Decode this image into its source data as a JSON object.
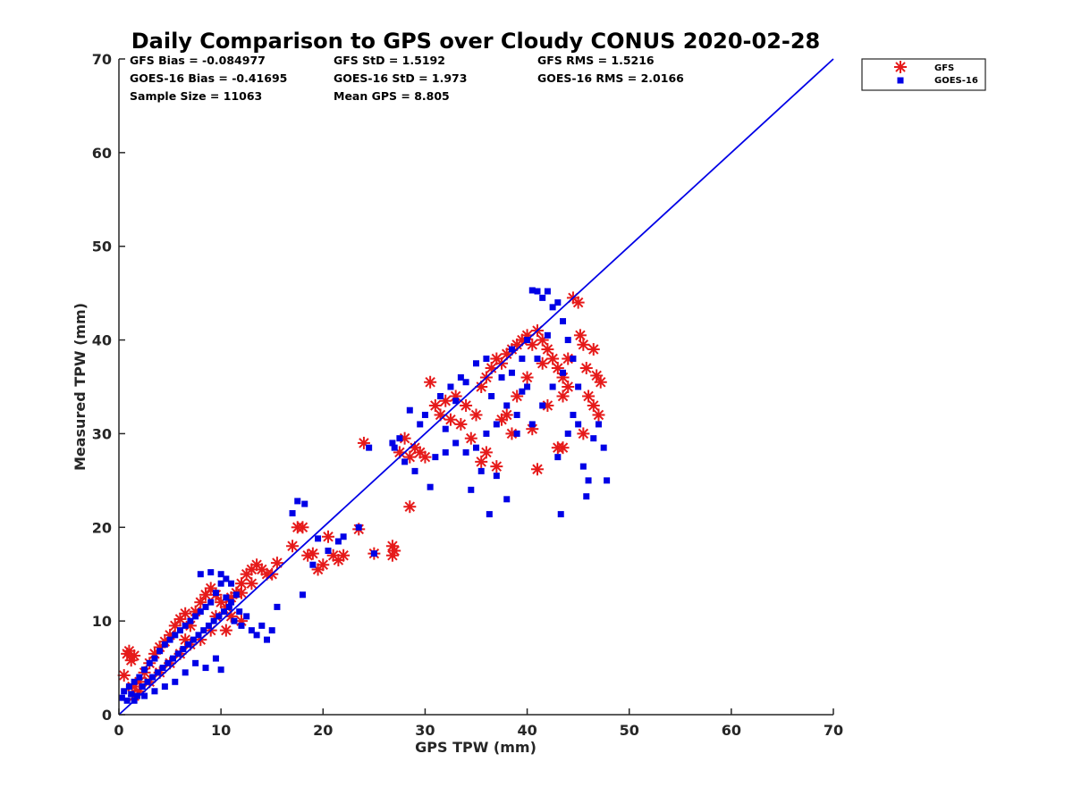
{
  "chart_data": {
    "type": "scatter",
    "title": "Daily Comparison to GPS over Cloudy CONUS 2020-02-28",
    "xlabel": "GPS TPW (mm)",
    "ylabel": "Measured TPW (mm)",
    "xlim": [
      0,
      70
    ],
    "ylim": [
      0,
      70
    ],
    "xticks": [
      0,
      10,
      20,
      30,
      40,
      50,
      60,
      70
    ],
    "yticks": [
      0,
      10,
      20,
      30,
      40,
      50,
      60,
      70
    ],
    "grid": false,
    "legend_position": "outside-top-right",
    "stats": {
      "gfs_bias": "GFS Bias = -0.084977",
      "gfs_std": "GFS StD = 1.5192",
      "gfs_rms": "GFS RMS = 1.5216",
      "goes_bias": "GOES-16 Bias = -0.41695",
      "goes_std": "GOES-16 StD = 1.973",
      "goes_rms": "GOES-16 RMS = 2.0166",
      "sample_size": "Sample Size = 11063",
      "mean_gps": "Mean GPS = 8.805"
    },
    "reference_line": {
      "x": [
        0,
        70
      ],
      "y": [
        0,
        70
      ],
      "color": "#0000e6"
    },
    "series": [
      {
        "name": "GFS",
        "marker": "asterisk",
        "color": "#e61a1a",
        "points": [
          [
            0.5,
            4.2
          ],
          [
            0.8,
            6.5
          ],
          [
            1.0,
            6.8
          ],
          [
            1.2,
            5.8
          ],
          [
            1.5,
            6.3
          ],
          [
            1.3,
            3.0
          ],
          [
            2.0,
            3.5
          ],
          [
            2.5,
            4.5
          ],
          [
            3.0,
            5.5
          ],
          [
            3.5,
            6.5
          ],
          [
            4.0,
            7.2
          ],
          [
            4.5,
            7.8
          ],
          [
            5.0,
            8.5
          ],
          [
            5.5,
            9.5
          ],
          [
            6.0,
            10.2
          ],
          [
            6.5,
            10.8
          ],
          [
            7.0,
            9.5
          ],
          [
            7.5,
            11.0
          ],
          [
            8.0,
            12.0
          ],
          [
            8.5,
            12.8
          ],
          [
            9.0,
            13.5
          ],
          [
            9.5,
            12.8
          ],
          [
            10.0,
            12.0
          ],
          [
            10.5,
            11.5
          ],
          [
            11.0,
            12.5
          ],
          [
            11.5,
            13.0
          ],
          [
            12.0,
            14.0
          ],
          [
            12.5,
            15.0
          ],
          [
            13.0,
            15.5
          ],
          [
            13.5,
            16.0
          ],
          [
            14.0,
            15.5
          ],
          [
            14.5,
            15.0
          ],
          [
            13.0,
            14.0
          ],
          [
            12.0,
            13.0
          ],
          [
            15.0,
            15.0
          ],
          [
            15.5,
            16.2
          ],
          [
            11.0,
            10.5
          ],
          [
            9.0,
            9.0
          ],
          [
            8.0,
            8.0
          ],
          [
            7.0,
            7.5
          ],
          [
            6.0,
            6.5
          ],
          [
            5.0,
            5.5
          ],
          [
            4.0,
            4.5
          ],
          [
            3.0,
            3.5
          ],
          [
            2.0,
            2.5
          ],
          [
            1.5,
            2.0
          ],
          [
            10.5,
            9.0
          ],
          [
            12.0,
            10.0
          ],
          [
            6.5,
            8.0
          ],
          [
            9.5,
            10.5
          ],
          [
            17.0,
            18.0
          ],
          [
            17.5,
            20.0
          ],
          [
            18.0,
            20.0
          ],
          [
            18.5,
            17.0
          ],
          [
            19.0,
            17.2
          ],
          [
            19.5,
            15.5
          ],
          [
            20.0,
            16.0
          ],
          [
            20.5,
            19.0
          ],
          [
            21.0,
            17.0
          ],
          [
            21.5,
            16.5
          ],
          [
            22.0,
            17.0
          ],
          [
            23.5,
            19.8
          ],
          [
            25.0,
            17.2
          ],
          [
            26.8,
            18.0
          ],
          [
            26.8,
            17.0
          ],
          [
            27.0,
            17.5
          ],
          [
            28.5,
            22.2
          ],
          [
            24.0,
            29.0
          ],
          [
            27.5,
            28.0
          ],
          [
            28.0,
            29.5
          ],
          [
            28.5,
            27.5
          ],
          [
            29.0,
            28.5
          ],
          [
            29.5,
            28.0
          ],
          [
            30.0,
            27.5
          ],
          [
            30.5,
            35.5
          ],
          [
            31.0,
            33.0
          ],
          [
            31.5,
            32.0
          ],
          [
            32.0,
            33.5
          ],
          [
            32.5,
            31.5
          ],
          [
            33.0,
            34.0
          ],
          [
            34.0,
            33.0
          ],
          [
            35.0,
            32.0
          ],
          [
            35.5,
            35.0
          ],
          [
            36.0,
            36.0
          ],
          [
            36.5,
            37.0
          ],
          [
            37.0,
            38.0
          ],
          [
            37.5,
            37.5
          ],
          [
            38.0,
            38.5
          ],
          [
            38.5,
            39.0
          ],
          [
            39.0,
            39.5
          ],
          [
            39.5,
            40.0
          ],
          [
            40.0,
            40.5
          ],
          [
            40.5,
            39.5
          ],
          [
            41.0,
            41.0
          ],
          [
            41.5,
            40.0
          ],
          [
            42.0,
            39.0
          ],
          [
            42.5,
            38.0
          ],
          [
            43.0,
            37.0
          ],
          [
            43.5,
            36.0
          ],
          [
            44.0,
            38.0
          ],
          [
            44.5,
            44.5
          ],
          [
            45.0,
            44.0
          ],
          [
            45.2,
            40.5
          ],
          [
            45.5,
            39.5
          ],
          [
            45.8,
            37.0
          ],
          [
            46.0,
            34.0
          ],
          [
            46.5,
            33.0
          ],
          [
            45.5,
            30.0
          ],
          [
            47.0,
            32.0
          ],
          [
            47.2,
            35.5
          ],
          [
            46.8,
            36.2
          ],
          [
            46.5,
            39.0
          ],
          [
            43.5,
            28.5
          ],
          [
            43.0,
            28.5
          ],
          [
            41.0,
            26.2
          ],
          [
            40.5,
            30.5
          ],
          [
            36.0,
            28.0
          ],
          [
            35.5,
            27.0
          ],
          [
            37.0,
            26.5
          ],
          [
            38.0,
            32.0
          ],
          [
            39.0,
            34.0
          ],
          [
            40.0,
            36.0
          ],
          [
            41.5,
            37.5
          ],
          [
            42.0,
            33.0
          ],
          [
            43.5,
            34.0
          ],
          [
            44.0,
            35.0
          ],
          [
            38.5,
            30.0
          ],
          [
            37.5,
            31.5
          ],
          [
            34.5,
            29.5
          ],
          [
            33.5,
            31.0
          ]
        ]
      },
      {
        "name": "GOES-16",
        "marker": "square",
        "color": "#0000e6",
        "points": [
          [
            0.3,
            1.8
          ],
          [
            0.5,
            2.5
          ],
          [
            0.8,
            1.5
          ],
          [
            1.0,
            3.0
          ],
          [
            1.2,
            2.2
          ],
          [
            1.5,
            3.5
          ],
          [
            1.8,
            2.0
          ],
          [
            2.0,
            4.0
          ],
          [
            2.3,
            3.0
          ],
          [
            2.5,
            4.8
          ],
          [
            2.8,
            3.5
          ],
          [
            3.0,
            5.5
          ],
          [
            3.3,
            4.0
          ],
          [
            3.5,
            6.0
          ],
          [
            3.8,
            4.5
          ],
          [
            4.0,
            6.8
          ],
          [
            4.3,
            5.0
          ],
          [
            4.5,
            7.5
          ],
          [
            4.8,
            5.5
          ],
          [
            5.0,
            8.0
          ],
          [
            5.3,
            6.0
          ],
          [
            5.5,
            8.5
          ],
          [
            5.8,
            6.5
          ],
          [
            6.0,
            9.0
          ],
          [
            6.3,
            7.0
          ],
          [
            6.5,
            9.5
          ],
          [
            6.8,
            7.5
          ],
          [
            7.0,
            10.0
          ],
          [
            7.3,
            8.0
          ],
          [
            7.5,
            10.5
          ],
          [
            7.8,
            8.5
          ],
          [
            8.0,
            11.0
          ],
          [
            8.3,
            9.0
          ],
          [
            8.5,
            11.5
          ],
          [
            8.8,
            9.5
          ],
          [
            9.0,
            12.0
          ],
          [
            9.3,
            10.0
          ],
          [
            9.5,
            13.0
          ],
          [
            9.8,
            10.5
          ],
          [
            10.0,
            14.0
          ],
          [
            10.3,
            11.0
          ],
          [
            10.5,
            12.5
          ],
          [
            10.8,
            11.5
          ],
          [
            11.0,
            12.0
          ],
          [
            11.3,
            10.0
          ],
          [
            11.5,
            12.8
          ],
          [
            11.8,
            11.0
          ],
          [
            12.0,
            9.5
          ],
          [
            12.5,
            10.5
          ],
          [
            13.0,
            9.0
          ],
          [
            13.5,
            8.5
          ],
          [
            14.0,
            9.5
          ],
          [
            14.5,
            8.0
          ],
          [
            15.0,
            9.0
          ],
          [
            15.5,
            11.5
          ],
          [
            10.0,
            4.8
          ],
          [
            9.5,
            6.0
          ],
          [
            8.5,
            5.0
          ],
          [
            7.5,
            5.5
          ],
          [
            6.5,
            4.5
          ],
          [
            5.5,
            3.5
          ],
          [
            4.5,
            3.0
          ],
          [
            3.5,
            2.5
          ],
          [
            2.5,
            2.0
          ],
          [
            1.5,
            1.5
          ],
          [
            8.0,
            15.0
          ],
          [
            9.0,
            15.2
          ],
          [
            10.0,
            15.0
          ],
          [
            10.5,
            14.5
          ],
          [
            11.0,
            14.0
          ],
          [
            17.0,
            21.5
          ],
          [
            17.5,
            22.8
          ],
          [
            18.2,
            22.5
          ],
          [
            18.0,
            12.8
          ],
          [
            19.0,
            16.0
          ],
          [
            19.5,
            18.8
          ],
          [
            20.5,
            17.5
          ],
          [
            21.5,
            18.5
          ],
          [
            22.0,
            19.0
          ],
          [
            23.5,
            20.0
          ],
          [
            25.0,
            17.2
          ],
          [
            24.5,
            28.5
          ],
          [
            26.8,
            29.0
          ],
          [
            27.0,
            28.5
          ],
          [
            27.5,
            29.5
          ],
          [
            28.0,
            27.0
          ],
          [
            28.5,
            32.5
          ],
          [
            29.0,
            26.0
          ],
          [
            29.5,
            31.0
          ],
          [
            30.0,
            32.0
          ],
          [
            30.5,
            24.3
          ],
          [
            31.0,
            27.5
          ],
          [
            31.5,
            34.0
          ],
          [
            32.0,
            30.5
          ],
          [
            32.5,
            35.0
          ],
          [
            33.0,
            33.5
          ],
          [
            33.5,
            36.0
          ],
          [
            34.0,
            35.5
          ],
          [
            34.5,
            24.0
          ],
          [
            35.0,
            37.5
          ],
          [
            35.5,
            26.0
          ],
          [
            36.0,
            38.0
          ],
          [
            36.3,
            21.4
          ],
          [
            36.5,
            34.0
          ],
          [
            37.0,
            25.5
          ],
          [
            37.5,
            36.0
          ],
          [
            38.0,
            23.0
          ],
          [
            38.5,
            39.0
          ],
          [
            39.0,
            32.0
          ],
          [
            39.5,
            38.0
          ],
          [
            40.0,
            40.0
          ],
          [
            40.5,
            45.3
          ],
          [
            41.0,
            45.2
          ],
          [
            41.5,
            44.5
          ],
          [
            42.0,
            45.2
          ],
          [
            42.5,
            43.5
          ],
          [
            43.0,
            44.0
          ],
          [
            43.3,
            21.4
          ],
          [
            43.5,
            42.0
          ],
          [
            44.0,
            40.0
          ],
          [
            44.5,
            32.0
          ],
          [
            45.0,
            31.0
          ],
          [
            45.5,
            26.5
          ],
          [
            45.8,
            23.3
          ],
          [
            46.0,
            25.0
          ],
          [
            46.5,
            29.5
          ],
          [
            47.0,
            31.0
          ],
          [
            47.5,
            28.5
          ],
          [
            47.8,
            25.0
          ],
          [
            42.0,
            40.5
          ],
          [
            41.0,
            38.0
          ],
          [
            40.0,
            35.0
          ],
          [
            39.0,
            30.0
          ],
          [
            38.0,
            33.0
          ],
          [
            37.0,
            31.0
          ],
          [
            36.0,
            30.0
          ],
          [
            35.0,
            28.5
          ],
          [
            34.0,
            28.0
          ],
          [
            33.0,
            29.0
          ],
          [
            32.0,
            28.0
          ],
          [
            43.0,
            27.5
          ],
          [
            44.0,
            30.0
          ],
          [
            45.0,
            35.0
          ],
          [
            44.5,
            38.0
          ],
          [
            43.5,
            36.5
          ],
          [
            42.5,
            35.0
          ],
          [
            41.5,
            33.0
          ],
          [
            40.5,
            31.0
          ],
          [
            39.5,
            34.5
          ],
          [
            38.5,
            36.5
          ]
        ]
      }
    ]
  }
}
